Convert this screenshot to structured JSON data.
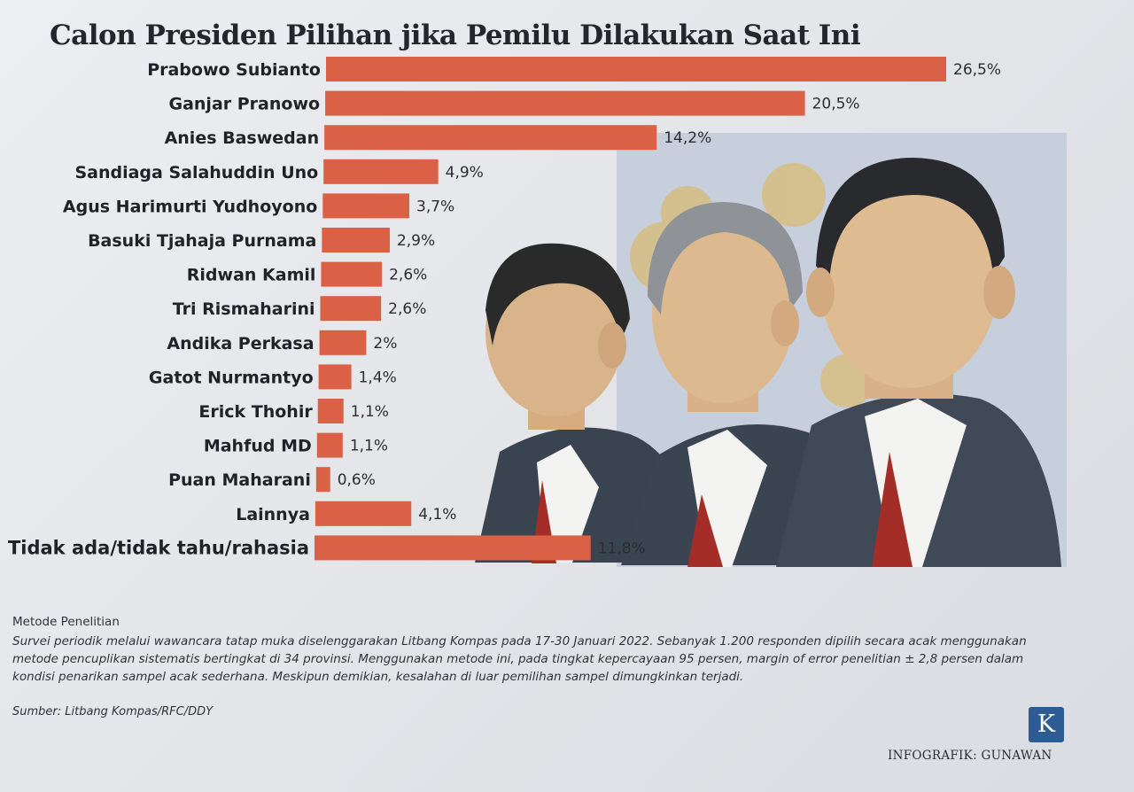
{
  "chart_data": {
    "type": "bar",
    "orientation": "horizontal",
    "title": "Calon Presiden Pilihan jika Pemilu Dilakukan Saat Ini",
    "categories": [
      "Prabowo Subianto",
      "Ganjar Pranowo",
      "Anies Baswedan",
      "Sandiaga Salahuddin Uno",
      "Agus Harimurti Yudhoyono",
      "Basuki Tjahaja Purnama",
      "Ridwan Kamil",
      "Tri Rismaharini",
      "Andika Perkasa",
      "Gatot Nurmantyo",
      "Erick Thohir",
      "Mahfud MD",
      "Puan Maharani",
      "Lainnya",
      "Tidak ada/tidak tahu/rahasia"
    ],
    "values": [
      26.5,
      20.5,
      14.2,
      4.9,
      3.7,
      2.9,
      2.6,
      2.6,
      2,
      1.4,
      1.1,
      1.1,
      0.6,
      4.1,
      11.8
    ],
    "value_labels": [
      "26,5%",
      "20,5%",
      "14,2%",
      "4,9%",
      "3,7%",
      "2,9%",
      "2,6%",
      "2,6%",
      "2%",
      "1,4%",
      "1,1%",
      "1,1%",
      "0,6%",
      "4,1%",
      "11,8%"
    ],
    "unit": "%",
    "grid": false,
    "legend": "none",
    "bar_color": "#db6146"
  },
  "method": {
    "heading": "Metode Penelitian",
    "body": "Survei periodik melalui wawancara tatap muka diselenggarakan Litbang Kompas pada 17-30 Januari 2022. Sebanyak 1.200 responden dipilih secara acak menggunakan metode pencuplikan sistematis bertingkat di 34 provinsi. Menggunakan metode ini, pada tingkat kepercayaan 95 persen, margin of error penelitian ± 2,8 persen dalam kondisi penarikan sampel acak sederhana. Meskipun demikian, kesalahan di luar pemilihan sampel dimungkinkan terjadi."
  },
  "source": "Sumber: Litbang Kompas/RFC/DDY",
  "logo_letter": "K",
  "credit": "INFOGRAFIK: GUNAWAN",
  "illustration": {
    "icon": "three-candidates-portrait-illustration",
    "colors": {
      "background": "#c7d0dc",
      "suit": "#3c4653",
      "tie": "#a72f28",
      "skin": "#d9b48a",
      "hair": "#2b2b2b",
      "ornament": "#d8bf84"
    }
  }
}
